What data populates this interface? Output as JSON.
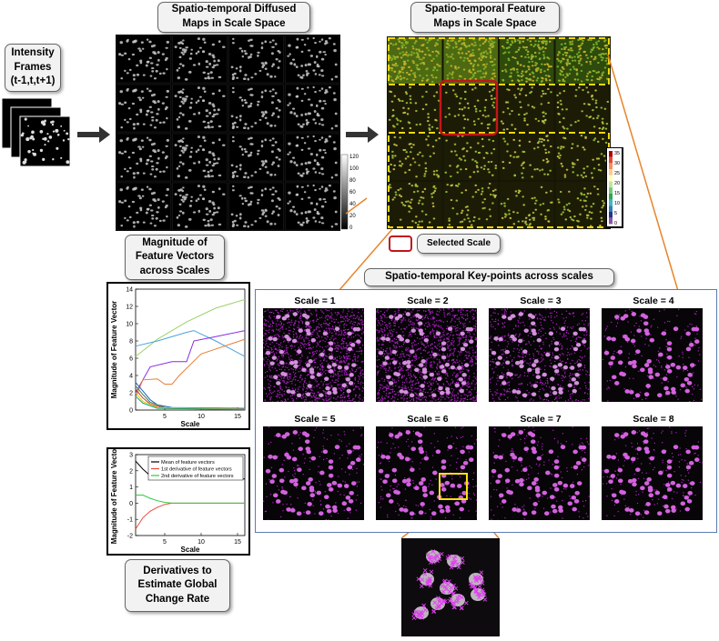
{
  "labels": {
    "intensity_frames_title": "Intensity Frames",
    "intensity_frames_sub": "(t-1,t,t+1)",
    "diffused_maps_line1": "Spatio-temporal Diffused",
    "diffused_maps_line2": "Maps in  Scale Space",
    "feature_maps_line1": "Spatio-temporal Feature",
    "feature_maps_line2": "Maps in  Scale Space",
    "magnitude_line1": "Magnitude of",
    "magnitude_line2": "Feature Vectors",
    "magnitude_line3": "across Scales",
    "selected_scale": "Selected Scale",
    "keypoints_title": "Spatio-temporal Key-points across scales",
    "derivatives_line1": "Derivatives to",
    "derivatives_line2": "Estimate Global",
    "derivatives_line3": "Change Rate"
  },
  "scales": [
    "Scale = 1",
    "Scale = 2",
    "Scale = 3",
    "Scale = 4",
    "Scale = 5",
    "Scale = 6",
    "Scale = 7",
    "Scale = 8"
  ],
  "colorbar_gray": {
    "ticks": [
      "120",
      "100",
      "80",
      "60",
      "40",
      "20",
      "0"
    ]
  },
  "colorbar_color": {
    "ticks": [
      "35",
      "30",
      "25",
      "20",
      "15",
      "10",
      "5",
      "0"
    ]
  },
  "chart_data": [
    {
      "type": "line",
      "xlabel": "Scale",
      "ylabel": "Magnitude of Feature Vector",
      "xticks": [
        "5",
        "10",
        "15"
      ],
      "yticks": [
        "0",
        "2",
        "4",
        "6",
        "8",
        "10",
        "12",
        "14"
      ],
      "xlim": [
        1,
        16
      ],
      "ylim": [
        0,
        14
      ],
      "series": [
        {
          "color": "#9bd26a",
          "x": [
            1,
            4,
            8,
            12,
            16
          ],
          "y": [
            6.2,
            8.2,
            10.2,
            11.8,
            12.8
          ]
        },
        {
          "color": "#4aa3e0",
          "x": [
            1,
            4,
            8,
            9,
            12,
            16
          ],
          "y": [
            7.4,
            8,
            9,
            9.2,
            8,
            6.2
          ]
        },
        {
          "color": "#8a2be2",
          "x": [
            1,
            3,
            6,
            8,
            9,
            12,
            16
          ],
          "y": [
            2,
            5,
            5.6,
            5.6,
            8,
            8.5,
            9.2
          ]
        },
        {
          "color": "#e8803a",
          "x": [
            1,
            2,
            4,
            5,
            6,
            7,
            10,
            16
          ],
          "y": [
            1.5,
            3.5,
            3.6,
            3.0,
            3.0,
            4.0,
            6.5,
            8.2
          ]
        },
        {
          "color": "#1f5fbf",
          "x": [
            1,
            2,
            3,
            4,
            6,
            16
          ],
          "y": [
            3.2,
            2.2,
            1.2,
            0.6,
            0.3,
            0.2
          ]
        },
        {
          "color": "#2e8b57",
          "x": [
            1,
            2,
            3,
            5,
            16
          ],
          "y": [
            2.8,
            1.8,
            0.9,
            0.3,
            0.1
          ]
        },
        {
          "color": "#c0392b",
          "x": [
            1,
            2,
            3,
            5,
            16
          ],
          "y": [
            2.4,
            1.4,
            0.7,
            0.2,
            0.1
          ]
        },
        {
          "color": "#f1c40f",
          "x": [
            1,
            2,
            4,
            16
          ],
          "y": [
            2.0,
            1.0,
            0.3,
            0.1
          ]
        },
        {
          "color": "#16a085",
          "x": [
            1,
            2,
            4,
            16
          ],
          "y": [
            1.6,
            0.8,
            0.2,
            0.05
          ]
        }
      ]
    },
    {
      "type": "line",
      "xlabel": "Scale",
      "ylabel": "Magnitude of Feature Vector",
      "xticks": [
        "5",
        "10",
        "15"
      ],
      "yticks": [
        "-2",
        "-1",
        "0",
        "1",
        "2",
        "3"
      ],
      "xlim": [
        1,
        16
      ],
      "ylim": [
        -2,
        3
      ],
      "series": [
        {
          "name": "Mean of feature vectors",
          "color": "#000000",
          "x": [
            1,
            2,
            3,
            4,
            5,
            6,
            8,
            16
          ],
          "y": [
            2.6,
            2.1,
            1.7,
            1.55,
            1.5,
            1.5,
            1.5,
            1.5
          ]
        },
        {
          "name": "1st derivative of feature vectors",
          "color": "#e74c3c",
          "x": [
            1,
            2,
            3,
            4,
            5,
            6,
            7,
            16
          ],
          "y": [
            -1.6,
            -0.9,
            -0.5,
            -0.25,
            -0.08,
            0,
            0,
            0
          ]
        },
        {
          "name": "2nd derivative of feature vectors",
          "color": "#2ecc40",
          "x": [
            1,
            2,
            3,
            4,
            5,
            6,
            7,
            16
          ],
          "y": [
            0.5,
            0.5,
            0.3,
            0.15,
            0.05,
            0,
            0,
            0
          ]
        }
      ]
    }
  ]
}
